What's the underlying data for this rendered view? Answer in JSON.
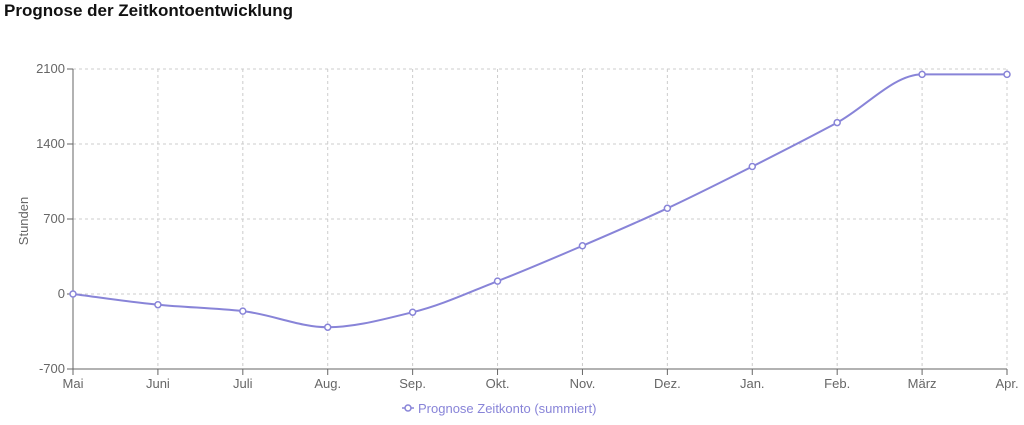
{
  "chart_data": {
    "type": "line",
    "title": "Prognose der Zeitkontoentwicklung",
    "y_label": "Stunden",
    "categories": [
      "Mai",
      "Juni",
      "Juli",
      "Aug.",
      "Sep.",
      "Okt.",
      "Nov.",
      "Dez.",
      "Jan.",
      "Feb.",
      "März",
      "Apr."
    ],
    "series": [
      {
        "name": "Prognose Zeitkonto (summiert)",
        "color": "#8884d8",
        "values": [
          0,
          -100,
          -160,
          -310,
          -170,
          120,
          450,
          800,
          1190,
          1600,
          2050,
          2050
        ]
      }
    ],
    "ylim": [
      -700,
      2100
    ],
    "yticks": [
      -700,
      0,
      700,
      1400,
      2100
    ],
    "grid": true
  }
}
